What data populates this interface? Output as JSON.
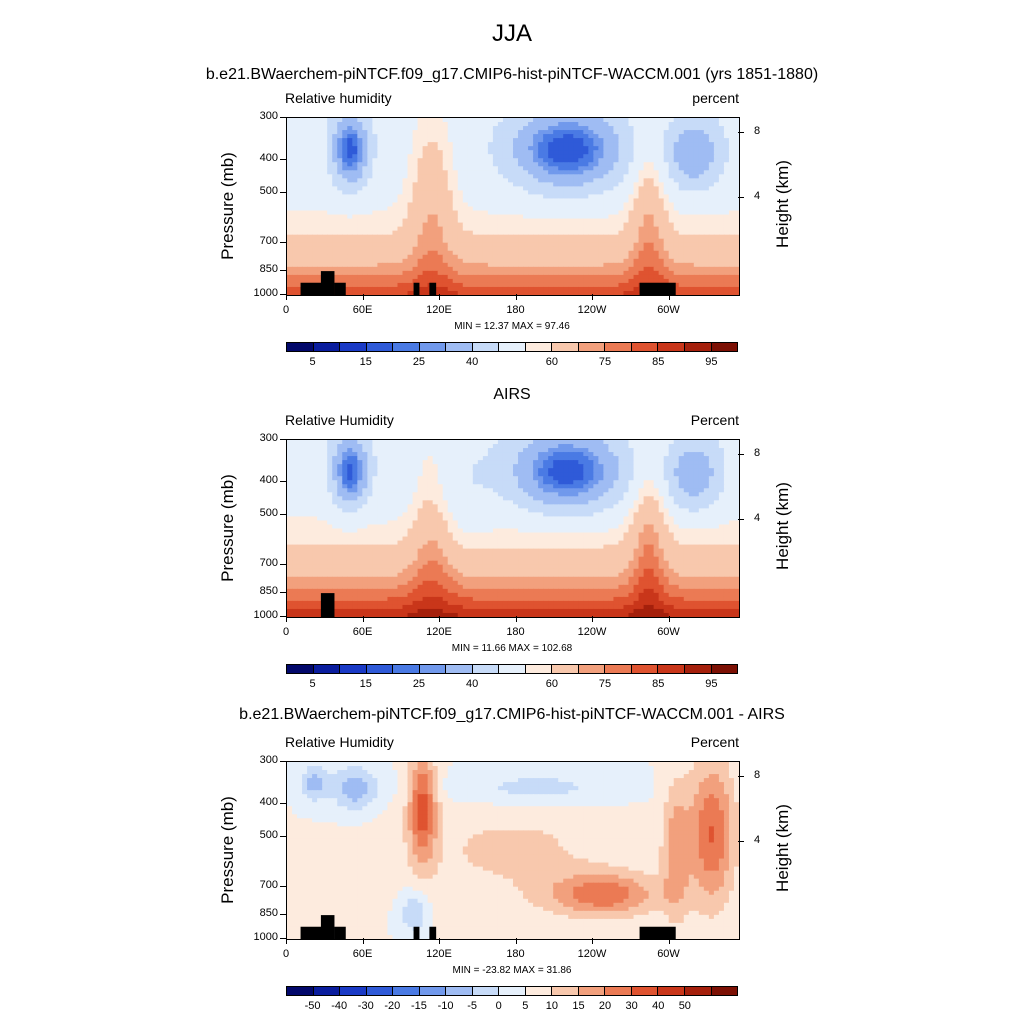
{
  "figure": {
    "title": "JJA",
    "colors": {
      "pos": [
        "#fde9dc",
        "#f9cdb2",
        "#f4ab8a",
        "#ee8a64",
        "#e5623d",
        "#d6431f",
        "#b32a12",
        "#8a1306",
        "#6e0a02"
      ],
      "neg": [
        "#d6e8fb",
        "#b6d3f7",
        "#90b8f1",
        "#6c98eb",
        "#4a74e2",
        "#2f55d8",
        "#1c39c0",
        "#0f22a0",
        "#08137a"
      ]
    }
  },
  "chart_data": [
    {
      "type": "heatmap",
      "title": "b.e21.BWaerchem-piNTCF.f09_g17.CMIP6-hist-piNTCF-WACCM.001 (yrs 1851-1880)",
      "left_label": "Relative humidity",
      "right_label": "percent",
      "ylabel": "Pressure (mb)",
      "ylabel_right": "Height (km)",
      "y_ticks": [
        "300",
        "400",
        "500",
        "700",
        "850",
        "1000"
      ],
      "y_right_ticks": [
        "8",
        "4"
      ],
      "x_ticks": [
        "0",
        "60E",
        "120E",
        "180",
        "120W",
        "60W"
      ],
      "minmax": "MIN =  12.37  MAX =  97.46",
      "colorbar_labels": [
        "5",
        "15",
        "25",
        "40",
        "60",
        "75",
        "85",
        "95"
      ],
      "colorbar": [
        "#02086b",
        "#0a1d9e",
        "#1a3ac6",
        "#2f5ad8",
        "#4a7ae4",
        "#7199ec",
        "#9fbcf3",
        "#c7dbf8",
        "#e6f0fb",
        "#fdebde",
        "#f8c8ad",
        "#f2a07d",
        "#eb7a54",
        "#df5330",
        "#c9361a",
        "#a5200c",
        "#7c1004"
      ],
      "field": "model"
    },
    {
      "type": "heatmap",
      "title": "AIRS",
      "left_label": "Relative Humidity",
      "right_label": "Percent",
      "ylabel": "Pressure (mb)",
      "ylabel_right": "Height (km)",
      "y_ticks": [
        "300",
        "400",
        "500",
        "700",
        "850",
        "1000"
      ],
      "y_right_ticks": [
        "8",
        "4"
      ],
      "x_ticks": [
        "0",
        "60E",
        "120E",
        "180",
        "120W",
        "60W"
      ],
      "minmax": "MIN =  11.66  MAX = 102.68",
      "colorbar_labels": [
        "5",
        "15",
        "25",
        "40",
        "60",
        "75",
        "85",
        "95"
      ],
      "colorbar": [
        "#02086b",
        "#0a1d9e",
        "#1a3ac6",
        "#2f5ad8",
        "#4a7ae4",
        "#7199ec",
        "#9fbcf3",
        "#c7dbf8",
        "#e6f0fb",
        "#fdebde",
        "#f8c8ad",
        "#f2a07d",
        "#eb7a54",
        "#df5330",
        "#c9361a",
        "#a5200c",
        "#7c1004"
      ],
      "field": "obs"
    },
    {
      "type": "heatmap",
      "title": "b.e21.BWaerchem-piNTCF.f09_g17.CMIP6-hist-piNTCF-WACCM.001 - AIRS",
      "left_label": "Relative Humidity",
      "right_label": "Percent",
      "ylabel": "Pressure (mb)",
      "ylabel_right": "Height (km)",
      "y_ticks": [
        "300",
        "400",
        "500",
        "700",
        "850",
        "1000"
      ],
      "y_right_ticks": [
        "8",
        "4"
      ],
      "x_ticks": [
        "0",
        "60E",
        "120E",
        "180",
        "120W",
        "60W"
      ],
      "minmax": "MIN = -23.82  MAX =  31.86",
      "colorbar_labels": [
        "-50",
        "-40",
        "-30",
        "-20",
        "-15",
        "-10",
        "-5",
        "0",
        "5",
        "10",
        "15",
        "20",
        "30",
        "40",
        "50"
      ],
      "colorbar": [
        "#02086b",
        "#0a1d9e",
        "#1a3ac6",
        "#2f5ad8",
        "#4a7ae4",
        "#7199ec",
        "#9fbcf3",
        "#c7dbf8",
        "#e6f0fb",
        "#fdebde",
        "#f8c8ad",
        "#f2a07d",
        "#eb7a54",
        "#df5330",
        "#c9361a",
        "#a5200c",
        "#7c1004"
      ],
      "field": "diff"
    }
  ]
}
